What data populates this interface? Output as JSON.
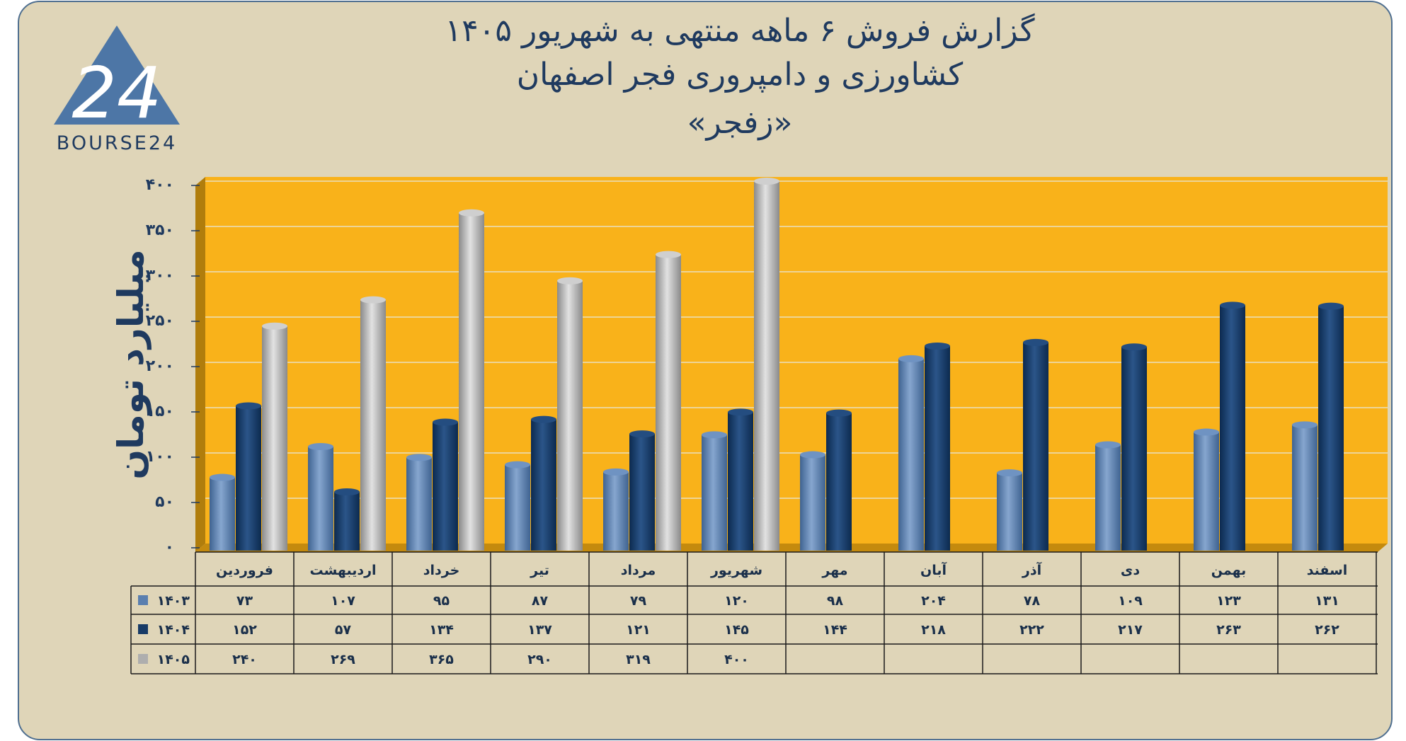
{
  "title": {
    "line1": "گزارش  فروش ۶ ماهه منتهی به شهریور ۱۴۰۵",
    "line2": "کشاورزی و دامپروری فجر اصفهان",
    "line3": "«زفجر»"
  },
  "logo": {
    "text": "BOURSE24",
    "mark": "24"
  },
  "colors": {
    "background": "#dfd5b8",
    "plot": "#f9b21a",
    "s1403": "#5a7faf",
    "s1404": "#173b67",
    "s1405": "#aeaeae"
  },
  "chart_data": {
    "type": "bar",
    "ylabel": "میلیارد تومان",
    "ylim": [
      0,
      400
    ],
    "yticks": [
      "۰",
      "۵۰",
      "۱۰۰",
      "۱۵۰",
      "۲۰۰",
      "۲۵۰",
      "۳۰۰",
      "۳۵۰",
      "۴۰۰"
    ],
    "grid": true,
    "categories": [
      "فروردین",
      "اردیبهشت",
      "خرداد",
      "تیر",
      "مرداد",
      "شهریور",
      "مهر",
      "آبان",
      "آذر",
      "دی",
      "بهمن",
      "اسفند"
    ],
    "series": [
      {
        "name": "۱۴۰۳",
        "values": [
          73,
          107,
          95,
          87,
          79,
          120,
          98,
          204,
          78,
          109,
          123,
          131
        ],
        "labels": [
          "۷۳",
          "۱۰۷",
          "۹۵",
          "۸۷",
          "۷۹",
          "۱۲۰",
          "۹۸",
          "۲۰۴",
          "۷۸",
          "۱۰۹",
          "۱۲۳",
          "۱۳۱"
        ]
      },
      {
        "name": "۱۴۰۴",
        "values": [
          152,
          57,
          134,
          137,
          121,
          145,
          144,
          218,
          222,
          217,
          263,
          262
        ],
        "labels": [
          "۱۵۲",
          "۵۷",
          "۱۳۴",
          "۱۳۷",
          "۱۲۱",
          "۱۴۵",
          "۱۴۴",
          "۲۱۸",
          "۲۲۲",
          "۲۱۷",
          "۲۶۳",
          "۲۶۲"
        ]
      },
      {
        "name": "۱۴۰۵",
        "values": [
          240,
          269,
          365,
          290,
          319,
          400,
          null,
          null,
          null,
          null,
          null,
          null
        ],
        "labels": [
          "۲۴۰",
          "۲۶۹",
          "۳۶۵",
          "۲۹۰",
          "۳۱۹",
          "۴۰۰",
          "",
          "",
          "",
          "",
          "",
          ""
        ]
      }
    ]
  }
}
